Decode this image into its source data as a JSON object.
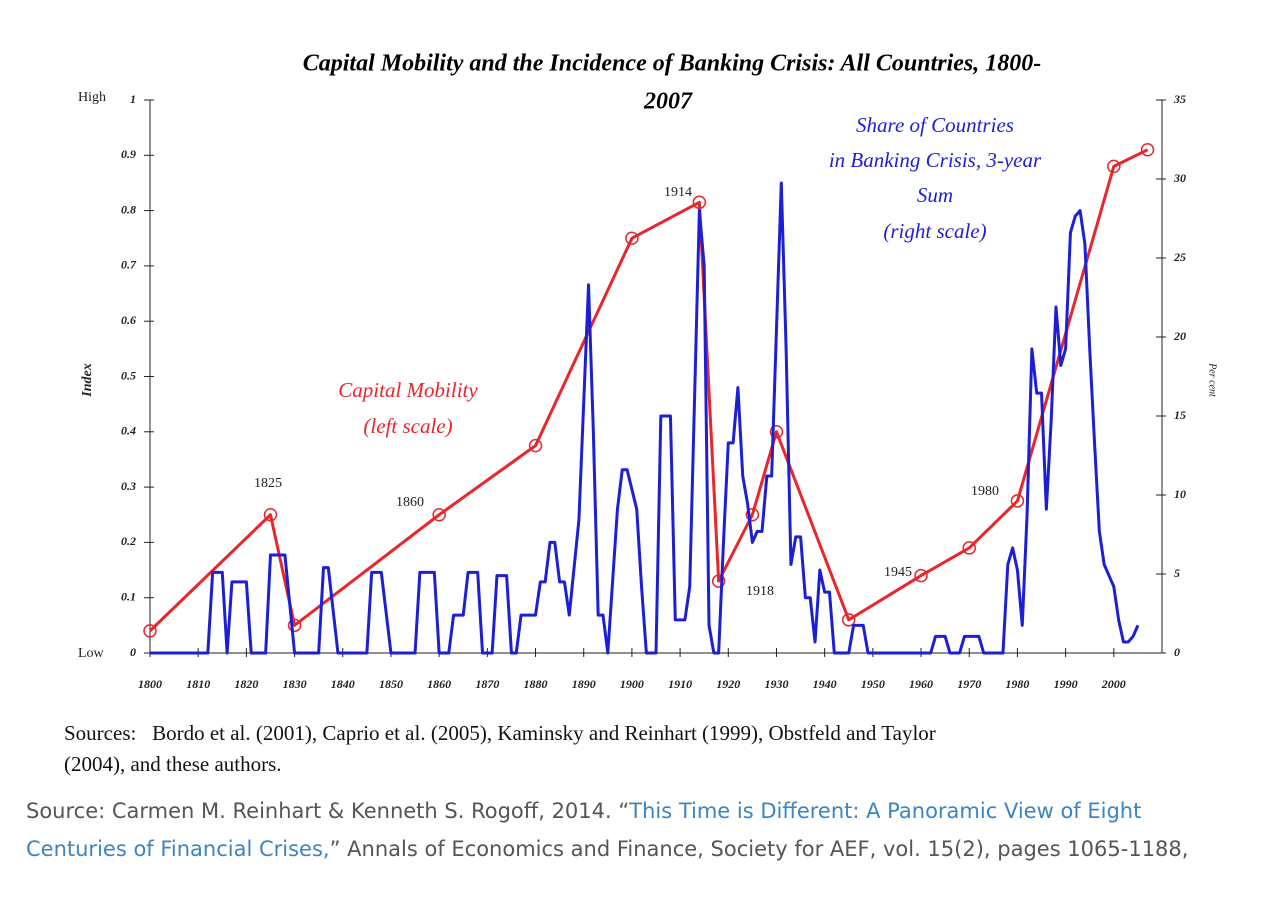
{
  "chart_data": {
    "type": "line",
    "title_lines": [
      "Capital Mobility and the Incidence of Banking Crisis: All Countries, 1800-",
      "2007"
    ],
    "ylabel": "Index",
    "y2label": "Per cent",
    "y_top_label": "High",
    "y_bottom_label": "Low",
    "xlim": [
      1800,
      2010
    ],
    "xticks": [
      1800,
      1810,
      1820,
      1830,
      1840,
      1850,
      1860,
      1870,
      1880,
      1890,
      1900,
      1910,
      1920,
      1930,
      1940,
      1950,
      1960,
      1970,
      1980,
      1990,
      2000
    ],
    "ylim": [
      0,
      1
    ],
    "yticks": [
      0,
      0.1,
      0.2,
      0.3,
      0.4,
      0.5,
      0.6,
      0.7,
      0.8,
      0.9,
      1
    ],
    "y2lim": [
      0,
      35
    ],
    "y2ticks": [
      0,
      5,
      10,
      15,
      20,
      25,
      30,
      35
    ],
    "series": [
      {
        "name": [
          "Capital Mobility",
          "(left scale)"
        ],
        "color": "#e8262b",
        "marker": "circle",
        "x": [
          1800,
          1825,
          1830,
          1860,
          1880,
          1900,
          1914,
          1918,
          1925,
          1930,
          1945,
          1960,
          1970,
          1980,
          2000,
          2007
        ],
        "values": [
          0.04,
          0.25,
          0.05,
          0.25,
          0.375,
          0.75,
          0.815,
          0.13,
          0.25,
          0.4,
          0.06,
          0.14,
          0.19,
          0.275,
          0.88,
          0.91
        ]
      },
      {
        "name": [
          "Share of Countries",
          "in Banking Crisis, 3-year",
          "Sum",
          "(right scale)"
        ],
        "color": "#1d1fd4",
        "axis": "y2",
        "x": [
          1800,
          1812,
          1813,
          1815,
          1816,
          1817,
          1820,
          1821,
          1824,
          1825,
          1828,
          1830,
          1835,
          1836,
          1837,
          1839,
          1845,
          1846,
          1848,
          1850,
          1855,
          1856,
          1859,
          1860,
          1862,
          1863,
          1865,
          1866,
          1868,
          1869,
          1871,
          1872,
          1874,
          1875,
          1876,
          1877,
          1880,
          1881,
          1882,
          1883,
          1884,
          1885,
          1886,
          1887,
          1889,
          1891,
          1892,
          1893,
          1894,
          1895,
          1897,
          1898,
          1899,
          1901,
          1902,
          1903,
          1905,
          1906,
          1908,
          1909,
          1911,
          1912,
          1914,
          1915,
          1916,
          1917,
          1918,
          1919,
          1920,
          1921,
          1922,
          1923,
          1924,
          1925,
          1926,
          1927,
          1928,
          1929,
          1931,
          1932,
          1933,
          1934,
          1935,
          1936,
          1937,
          1938,
          1939,
          1940,
          1941,
          1942,
          1945,
          1946,
          1948,
          1949,
          1962,
          1963,
          1965,
          1966,
          1968,
          1969,
          1972,
          1973,
          1977,
          1978,
          1979,
          1980,
          1981,
          1982,
          1983,
          1984,
          1985,
          1986,
          1987,
          1988,
          1989,
          1990,
          1991,
          1992,
          1993,
          1994,
          1995,
          1996,
          1997,
          1998,
          1999,
          2000,
          2001,
          2002,
          2003,
          2004,
          2005
        ],
        "values": [
          0,
          0,
          5.1,
          5.1,
          0,
          4.5,
          4.5,
          0,
          0,
          6.2,
          6.2,
          0,
          0,
          5.4,
          5.4,
          0,
          0,
          5.1,
          5.1,
          0,
          0,
          5.1,
          5.1,
          0,
          0,
          2.4,
          2.4,
          5.1,
          5.1,
          0,
          0,
          4.9,
          4.9,
          0,
          0,
          2.4,
          2.4,
          4.5,
          4.5,
          7,
          7,
          4.5,
          4.5,
          2.4,
          8.4,
          23.3,
          14,
          2.4,
          2.4,
          0,
          9.1,
          11.6,
          11.6,
          9.1,
          4.2,
          0,
          0,
          15,
          15,
          2.1,
          2.1,
          4.2,
          28,
          24.5,
          1.75,
          0,
          0,
          7,
          13.3,
          13.3,
          16.8,
          11.2,
          9.45,
          7,
          7.7,
          7.7,
          11.2,
          11.2,
          29.75,
          19.25,
          5.6,
          7.35,
          7.35,
          3.5,
          3.5,
          0.7,
          5.25,
          3.85,
          3.85,
          0,
          0,
          1.75,
          1.75,
          0,
          0,
          1.05,
          1.05,
          0,
          0,
          1.05,
          1.05,
          0,
          0,
          5.6,
          6.65,
          5.25,
          1.75,
          8.75,
          19.25,
          16.45,
          16.45,
          9.1,
          14.7,
          21.9,
          18.2,
          19.25,
          26.6,
          27.65,
          28,
          25.9,
          19.25,
          13.3,
          7.7,
          5.6,
          4.9,
          4.2,
          2.1,
          0.7,
          0.7,
          1.05,
          1.75
        ]
      }
    ],
    "annotations": [
      "1825",
      "1860",
      "1914",
      "1918",
      "1945",
      "1980"
    ]
  },
  "sources_note": [
    "Sources:   Bordo et al. (2001), Caprio et al. (2005), Kaminsky and Reinhart (1999), Obstfeld and Taylor",
    "(2004), and these authors."
  ],
  "caption": {
    "before": "Source: Carmen M. Reinhart & Kenneth S. Rogoff, 2014. “",
    "link": "This Time is Different: A Panoramic View of Eight Centuries of Financial Crises,",
    "after": "” Annals of Economics and Finance, Society for AEF, vol. 15(2), pages 1065-1188,"
  }
}
